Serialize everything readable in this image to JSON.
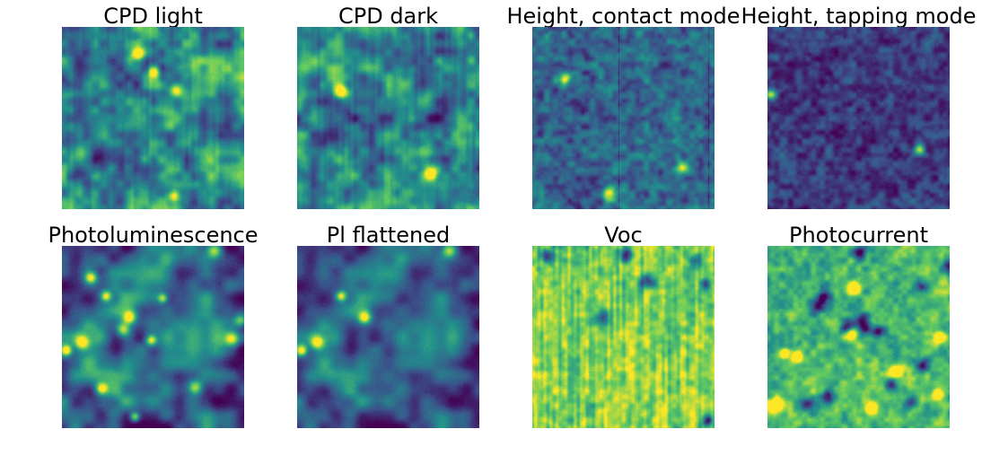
{
  "figure": {
    "background": "#ffffff",
    "colormap": "viridis",
    "colormap_stops": [
      "#440154",
      "#3b528b",
      "#21918c",
      "#5ec962",
      "#fde725"
    ]
  },
  "chart_data": [
    {
      "type": "heatmap",
      "title": "CPD light",
      "xlabel": "",
      "ylabel": "",
      "axes_visible": false,
      "grid": false,
      "pattern": {
        "seed": 11,
        "mean": 0.48,
        "contrast": 0.55,
        "blob_size": "small",
        "streaks": "vertical-faint",
        "hotspots": 4
      }
    },
    {
      "type": "heatmap",
      "title": "CPD dark",
      "xlabel": "",
      "ylabel": "",
      "axes_visible": false,
      "grid": false,
      "pattern": {
        "seed": 23,
        "mean": 0.46,
        "contrast": 0.5,
        "blob_size": "small",
        "streaks": "vertical-faint",
        "hotspots": 2
      }
    },
    {
      "type": "heatmap",
      "title": "Height, contact mode",
      "xlabel": "",
      "ylabel": "",
      "axes_visible": false,
      "grid": false,
      "pattern": {
        "seed": 37,
        "mean": 0.33,
        "contrast": 0.3,
        "blob_size": "grain",
        "streaks": "vertical-lines",
        "hotspots": 3
      }
    },
    {
      "type": "heatmap",
      "title": "Height, tapping mode",
      "xlabel": "",
      "ylabel": "",
      "axes_visible": false,
      "grid": false,
      "pattern": {
        "seed": 41,
        "mean": 0.18,
        "contrast": 0.25,
        "blob_size": "grain",
        "streaks": "none",
        "hotspots": 2
      }
    },
    {
      "type": "heatmap",
      "title": "Photoluminescence",
      "xlabel": "",
      "ylabel": "",
      "axes_visible": false,
      "grid": false,
      "pattern": {
        "seed": 53,
        "mean": 0.38,
        "contrast": 0.6,
        "blob_size": "medium",
        "streaks": "none",
        "hotspots": 14
      }
    },
    {
      "type": "heatmap",
      "title": "Pl flattened",
      "xlabel": "",
      "ylabel": "",
      "axes_visible": false,
      "grid": false,
      "pattern": {
        "seed": 53,
        "mean": 0.34,
        "contrast": 0.5,
        "blob_size": "medium",
        "streaks": "none",
        "hotspots": 5
      }
    },
    {
      "type": "heatmap",
      "title": "Voc",
      "xlabel": "",
      "ylabel": "",
      "axes_visible": false,
      "grid": false,
      "pattern": {
        "seed": 67,
        "mean": 0.82,
        "contrast": 0.25,
        "blob_size": "grain",
        "streaks": "vertical-strong",
        "hotspots": 0,
        "dark_spots": 7
      }
    },
    {
      "type": "heatmap",
      "title": "Photocurrent",
      "xlabel": "",
      "ylabel": "",
      "axes_visible": false,
      "grid": false,
      "pattern": {
        "seed": 79,
        "mean": 0.68,
        "contrast": 0.3,
        "blob_size": "grain",
        "streaks": "none",
        "hotspots": 10,
        "dark_spots": 14
      }
    }
  ]
}
